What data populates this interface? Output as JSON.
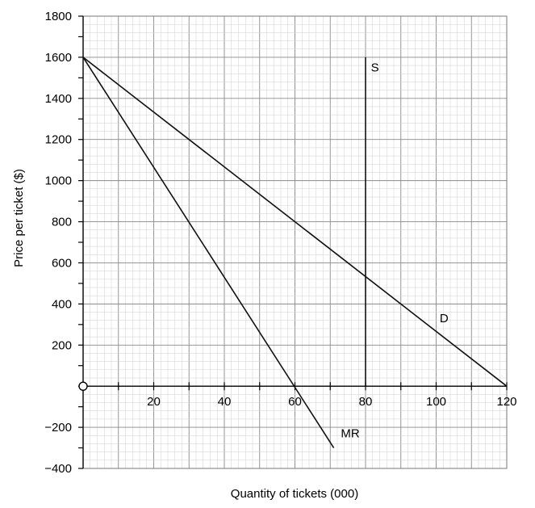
{
  "chart_data": {
    "type": "line",
    "title": "",
    "xlabel": "Quantity of tickets (000)",
    "ylabel": "Price per ticket ($)",
    "xlim": [
      0,
      120
    ],
    "ylim": [
      -400,
      1800
    ],
    "x_tick_labels": [
      "20",
      "40",
      "60",
      "80",
      "100",
      "120"
    ],
    "x_tick_values": [
      20,
      40,
      60,
      80,
      100,
      120
    ],
    "y_tick_labels": [
      "1800",
      "1600",
      "1400",
      "1200",
      "1000",
      "800",
      "600",
      "400",
      "200",
      "−200",
      "−400"
    ],
    "y_tick_values": [
      1800,
      1600,
      1400,
      1200,
      1000,
      800,
      600,
      400,
      200,
      -200,
      -400
    ],
    "origin_marker": "O",
    "grid": true,
    "series": [
      {
        "name": "D",
        "x": [
          0,
          120
        ],
        "y": [
          1600,
          0
        ]
      },
      {
        "name": "MR",
        "x": [
          0,
          71
        ],
        "y": [
          1600,
          -300
        ]
      },
      {
        "name": "S",
        "x": [
          80,
          80
        ],
        "y": [
          0,
          1600
        ]
      }
    ]
  }
}
